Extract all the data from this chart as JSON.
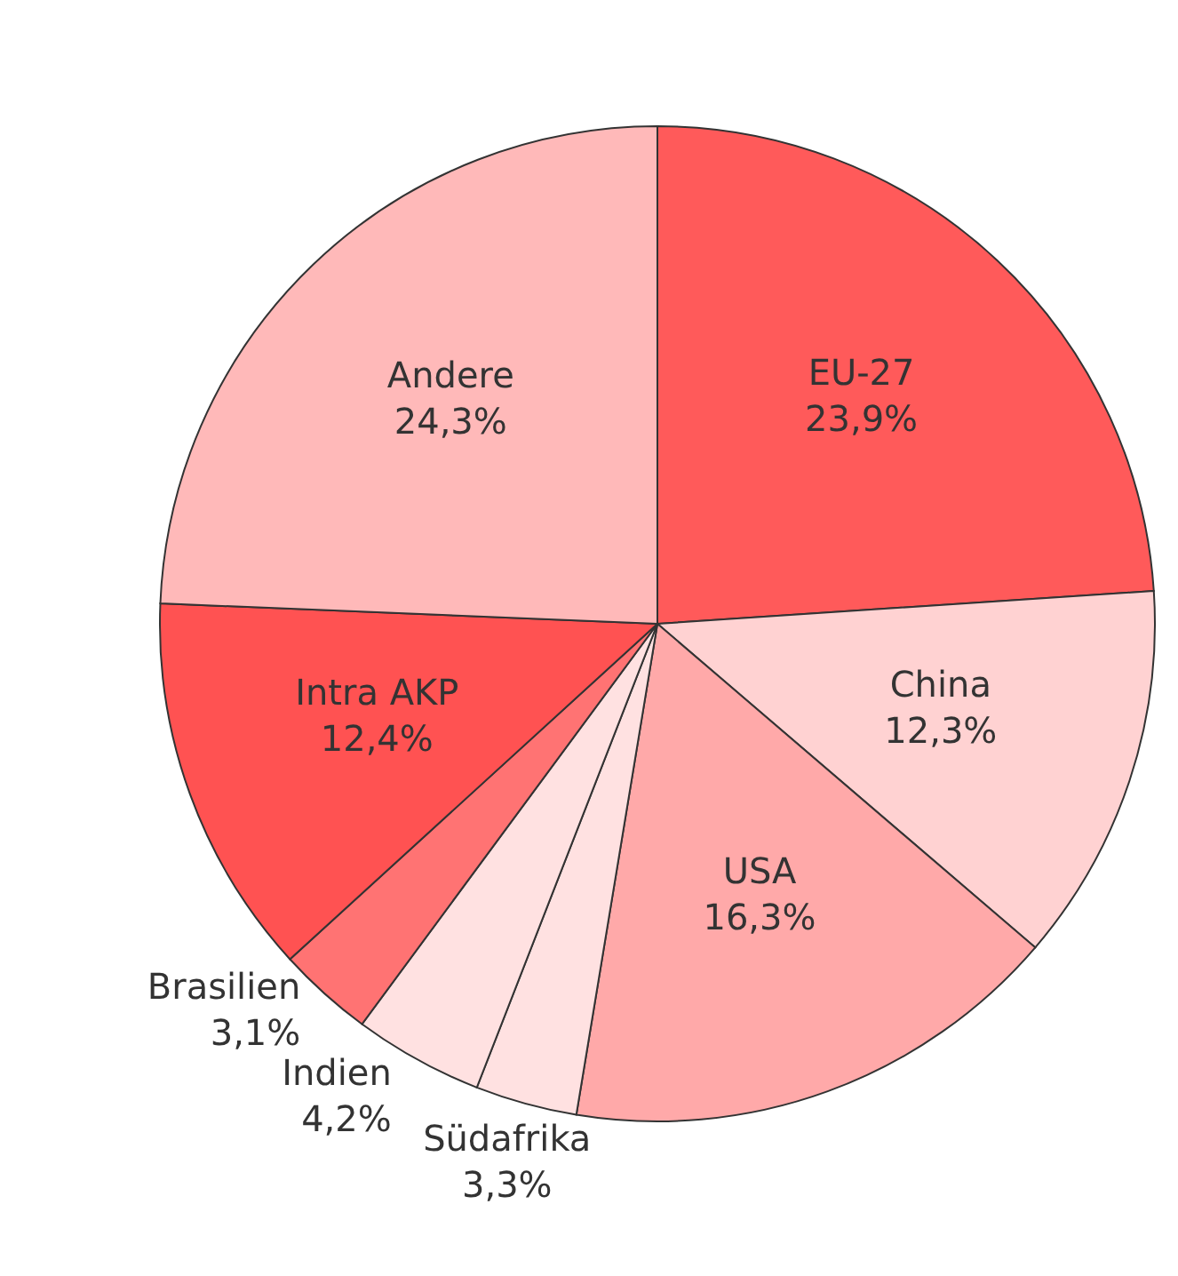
{
  "chart_data": {
    "type": "pie",
    "categories": [
      "EU-27",
      "China",
      "USA",
      "Südafrika",
      "Indien",
      "Brasilien",
      "Intra AKP",
      "Andere"
    ],
    "values": [
      23.9,
      12.3,
      16.3,
      3.3,
      4.2,
      3.1,
      12.4,
      24.3
    ],
    "value_labels": [
      "23,9%",
      "12,3%",
      "16,3%",
      "3,3%",
      "4,2%",
      "3,1%",
      "12,4%",
      "24,3%"
    ],
    "colors": [
      "#ff5a5a",
      "#ffd2d2",
      "#ffa9a9",
      "#ffe1e1",
      "#ffe1e1",
      "#ff7373",
      "#ff5252",
      "#ffb9b9"
    ]
  }
}
